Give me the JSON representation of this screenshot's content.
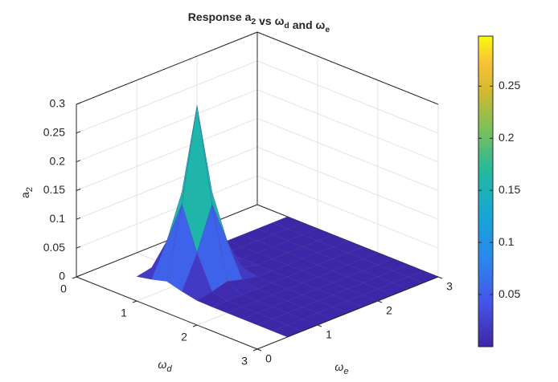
{
  "chart_data": {
    "type": "surface",
    "title": [
      {
        "text": "Response a",
        "sub": "2"
      },
      {
        "text": " vs ω",
        "sub": "d"
      },
      {
        "text": " and ω",
        "sub": "e"
      }
    ],
    "xlabel": {
      "text": "ω",
      "sub": "d"
    },
    "ylabel": {
      "text": "ω",
      "sub": "e"
    },
    "zlabel": {
      "text": "a",
      "sub": "2"
    },
    "xlim": [
      0,
      3
    ],
    "xticks": [
      0,
      1,
      2,
      3
    ],
    "ylim": [
      0,
      3
    ],
    "yticks": [
      0,
      1,
      2,
      3
    ],
    "zlim": [
      0,
      0.3
    ],
    "zticks": [
      0,
      0.05,
      0.1,
      0.15,
      0.2,
      0.25,
      0.3
    ],
    "grid": true,
    "colormap": "parula",
    "clim": [
      0,
      0.298
    ],
    "cticks": [
      0.05,
      0.1,
      0.15,
      0.2,
      0.25
    ],
    "x": [
      0.5,
      0.75,
      1,
      1.25,
      1.5,
      1.75,
      2,
      2.25,
      2.5,
      2.75,
      3
    ],
    "y": [
      0.5,
      0.75,
      1,
      1.25,
      1.5,
      1.75,
      2,
      2.25,
      2.5,
      2.75,
      3
    ],
    "z": [
      [
        0.0006,
        0.006,
        0.0131,
        0.006,
        0.0006,
        0,
        0,
        0,
        0,
        0,
        0
      ],
      [
        0.006,
        0.0625,
        0.1366,
        0.0625,
        0.006,
        0,
        0,
        0,
        0,
        0,
        0
      ],
      [
        0.0131,
        0.1366,
        0.298,
        0.1366,
        0.0131,
        0.0003,
        0,
        0,
        0,
        0,
        0
      ],
      [
        0.006,
        0.0625,
        0.1366,
        0.0625,
        0.006,
        0,
        0,
        0,
        0,
        0,
        0
      ],
      [
        0.0006,
        0.006,
        0.0131,
        0.006,
        0.0006,
        0,
        0,
        0,
        0,
        0,
        0
      ],
      [
        0,
        0,
        0.0003,
        0,
        0,
        0,
        0,
        0,
        0,
        0,
        0
      ],
      [
        0,
        0,
        0,
        0,
        0,
        0,
        0,
        0,
        0,
        0,
        0
      ],
      [
        0,
        0,
        0,
        0,
        0,
        0,
        0,
        0,
        0,
        0,
        0
      ],
      [
        0,
        0,
        0,
        0,
        0,
        0,
        0,
        0,
        0,
        0,
        0
      ],
      [
        0,
        0,
        0,
        0,
        0,
        0,
        0,
        0,
        0,
        0,
        0
      ],
      [
        0,
        0,
        0,
        0,
        0,
        0,
        0,
        0,
        0,
        0,
        0
      ]
    ]
  }
}
